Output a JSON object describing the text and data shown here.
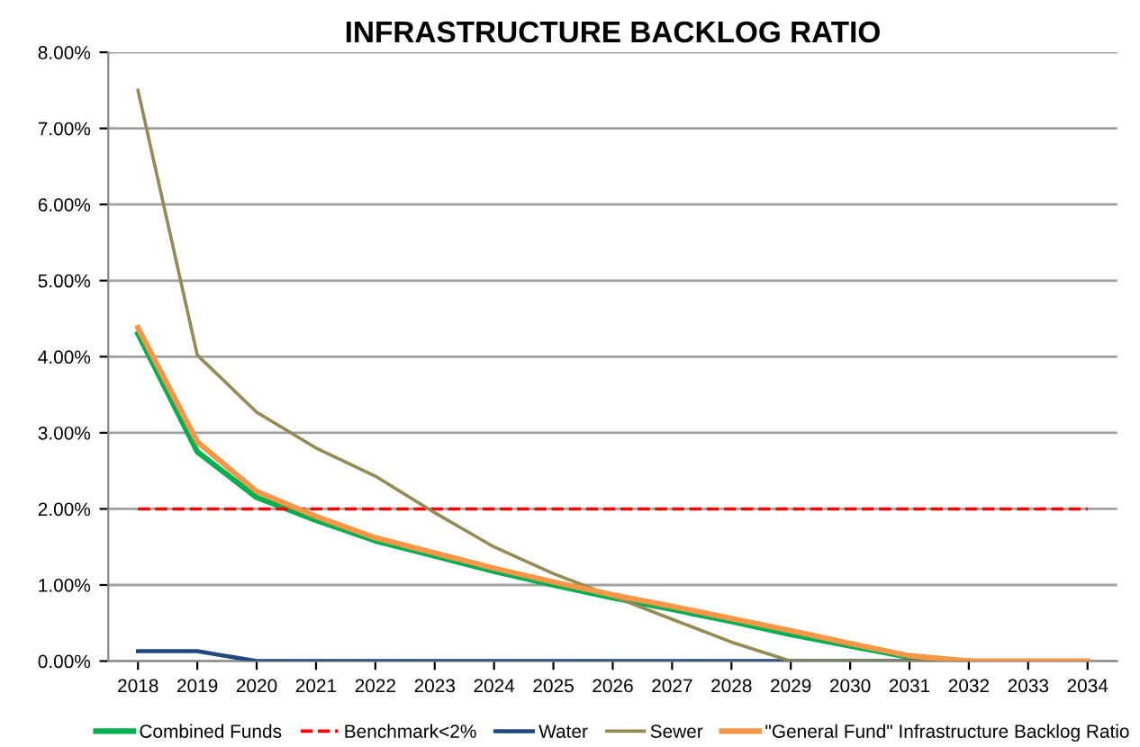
{
  "chart_data": {
    "type": "line",
    "title": "INFRASTRUCTURE BACKLOG RATIO",
    "categories": [
      "2018",
      "2019",
      "2020",
      "2021",
      "2022",
      "2023",
      "2024",
      "2025",
      "2026",
      "2027",
      "2028",
      "2029",
      "2030",
      "2031",
      "2032",
      "2033",
      "2034"
    ],
    "series": [
      {
        "name": "Combined Funds",
        "color": "#00b050",
        "values": [
          4.3,
          2.75,
          2.15,
          1.85,
          1.58,
          1.38,
          1.18,
          1.0,
          0.83,
          0.68,
          0.52,
          0.35,
          0.2,
          0.05,
          0,
          null,
          null
        ]
      },
      {
        "name": "Benchmark<2%",
        "color": "#ff0000",
        "line_style": "dashed",
        "values": [
          2,
          2,
          2,
          2,
          2,
          2,
          2,
          2,
          2,
          2,
          2,
          2,
          2,
          2,
          2,
          2,
          2
        ]
      },
      {
        "name": "Water",
        "color": "#1f497d",
        "values": [
          0.13,
          0.13,
          0,
          0,
          0,
          0,
          0,
          0,
          0,
          0,
          0,
          0,
          0,
          0,
          0,
          null,
          null
        ]
      },
      {
        "name": "Sewer",
        "color": "#948a54",
        "values": [
          7.5,
          4.02,
          3.27,
          2.8,
          2.43,
          1.95,
          1.5,
          1.15,
          0.85,
          0.55,
          0.25,
          0,
          0,
          0,
          0,
          0,
          0
        ]
      },
      {
        "name": "\"General Fund\" Infrastructure Backlog Ratio",
        "color": "#f79646",
        "values": [
          4.38,
          2.88,
          2.23,
          1.9,
          1.62,
          1.42,
          1.22,
          1.04,
          0.87,
          0.72,
          0.56,
          0.4,
          0.23,
          0.07,
          0,
          0,
          0
        ]
      }
    ],
    "ylim": [
      0,
      8
    ],
    "yticks": [
      {
        "value": 0,
        "label": "0.00%"
      },
      {
        "value": 1,
        "label": "1.00%"
      },
      {
        "value": 2,
        "label": "2.00%"
      },
      {
        "value": 3,
        "label": "3.00%"
      },
      {
        "value": 4,
        "label": "4.00%"
      },
      {
        "value": 5,
        "label": "5.00%"
      },
      {
        "value": 6,
        "label": "6.00%"
      },
      {
        "value": 7,
        "label": "7.00%"
      },
      {
        "value": 8,
        "label": "8.00%"
      }
    ],
    "grid": "y",
    "legend": "bottom",
    "marker": "none",
    "line_style": "solid"
  }
}
